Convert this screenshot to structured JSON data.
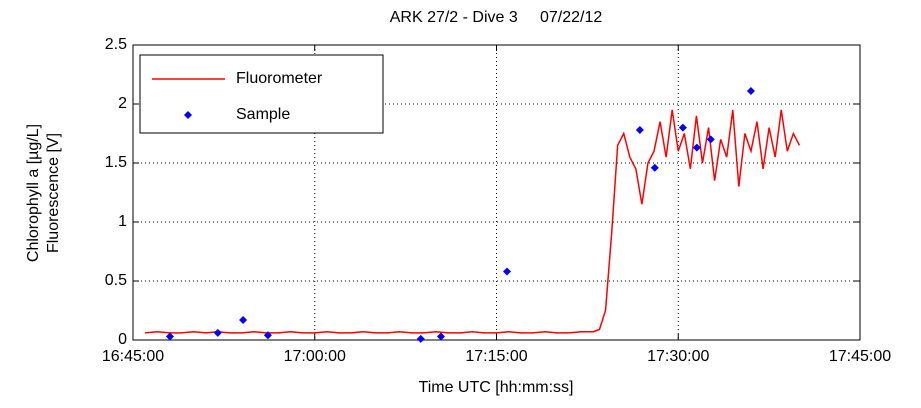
{
  "chart_data": {
    "type": "line",
    "title": "ARK 27/2 - Dive 3     07/22/12",
    "xlabel": "Time UTC [hh:mm:ss]",
    "ylabel": [
      "Chlorophyll a [µg/L]",
      "Fluorescence [V]"
    ],
    "xlim": [
      "16:45:00",
      "17:45:00"
    ],
    "xticks": [
      "16:45:00",
      "17:00:00",
      "17:15:00",
      "17:30:00",
      "17:45:00"
    ],
    "ylim": [
      0,
      2.5
    ],
    "yticks": [
      0,
      0.5,
      1,
      1.5,
      2,
      2.5
    ],
    "grid": true,
    "legend": "northwest",
    "series": [
      {
        "name": "Fluorometer",
        "color": "#ff0000",
        "style": "line",
        "x": [
          "16:46:00",
          "16:47:00",
          "16:48:00",
          "16:49:00",
          "16:50:00",
          "16:51:00",
          "16:52:00",
          "16:53:00",
          "16:54:00",
          "16:55:00",
          "16:56:00",
          "16:57:00",
          "16:58:00",
          "16:59:00",
          "17:00:00",
          "17:01:00",
          "17:02:00",
          "17:03:00",
          "17:04:00",
          "17:05:00",
          "17:06:00",
          "17:07:00",
          "17:08:00",
          "17:09:00",
          "17:10:00",
          "17:11:00",
          "17:12:00",
          "17:13:00",
          "17:14:00",
          "17:15:00",
          "17:16:00",
          "17:17:00",
          "17:18:00",
          "17:19:00",
          "17:20:00",
          "17:21:00",
          "17:22:00",
          "17:23:00",
          "17:23:30",
          "17:24:00",
          "17:24:30",
          "17:25:00",
          "17:25:30",
          "17:26:00",
          "17:26:30",
          "17:27:00",
          "17:27:30",
          "17:28:00",
          "17:28:30",
          "17:29:00",
          "17:29:30",
          "17:30:00",
          "17:30:30",
          "17:31:00",
          "17:31:30",
          "17:32:00",
          "17:32:30",
          "17:33:00",
          "17:33:30",
          "17:34:00",
          "17:34:30",
          "17:35:00",
          "17:35:30",
          "17:36:00",
          "17:36:30",
          "17:37:00",
          "17:37:30",
          "17:38:00",
          "17:38:30",
          "17:39:00",
          "17:39:30",
          "17:40:00"
        ],
        "values": [
          0.06,
          0.07,
          0.06,
          0.06,
          0.07,
          0.06,
          0.07,
          0.06,
          0.06,
          0.07,
          0.06,
          0.06,
          0.07,
          0.06,
          0.06,
          0.07,
          0.06,
          0.06,
          0.07,
          0.06,
          0.06,
          0.07,
          0.06,
          0.06,
          0.07,
          0.06,
          0.06,
          0.07,
          0.06,
          0.06,
          0.07,
          0.06,
          0.06,
          0.07,
          0.06,
          0.06,
          0.07,
          0.07,
          0.09,
          0.25,
          0.9,
          1.65,
          1.75,
          1.55,
          1.45,
          1.15,
          1.5,
          1.6,
          1.85,
          1.55,
          1.95,
          1.6,
          1.75,
          1.45,
          1.9,
          1.5,
          1.8,
          1.35,
          1.7,
          1.55,
          1.95,
          1.3,
          1.75,
          1.6,
          1.85,
          1.45,
          1.8,
          1.55,
          1.95,
          1.6,
          1.75,
          1.65
        ]
      },
      {
        "name": "Sample",
        "color": "#0000ff",
        "style": "marker",
        "x": [
          "16:48:03",
          "16:52:00",
          "16:54:05",
          "16:56:08",
          "17:08:45",
          "17:10:25",
          "17:15:52",
          "17:26:50",
          "17:28:04",
          "17:30:23",
          "17:31:32",
          "17:32:41",
          "17:36:00"
        ],
        "values": [
          0.03,
          0.06,
          0.17,
          0.04,
          0.01,
          0.03,
          0.58,
          1.78,
          1.46,
          1.8,
          1.63,
          1.7,
          2.11
        ]
      }
    ]
  }
}
